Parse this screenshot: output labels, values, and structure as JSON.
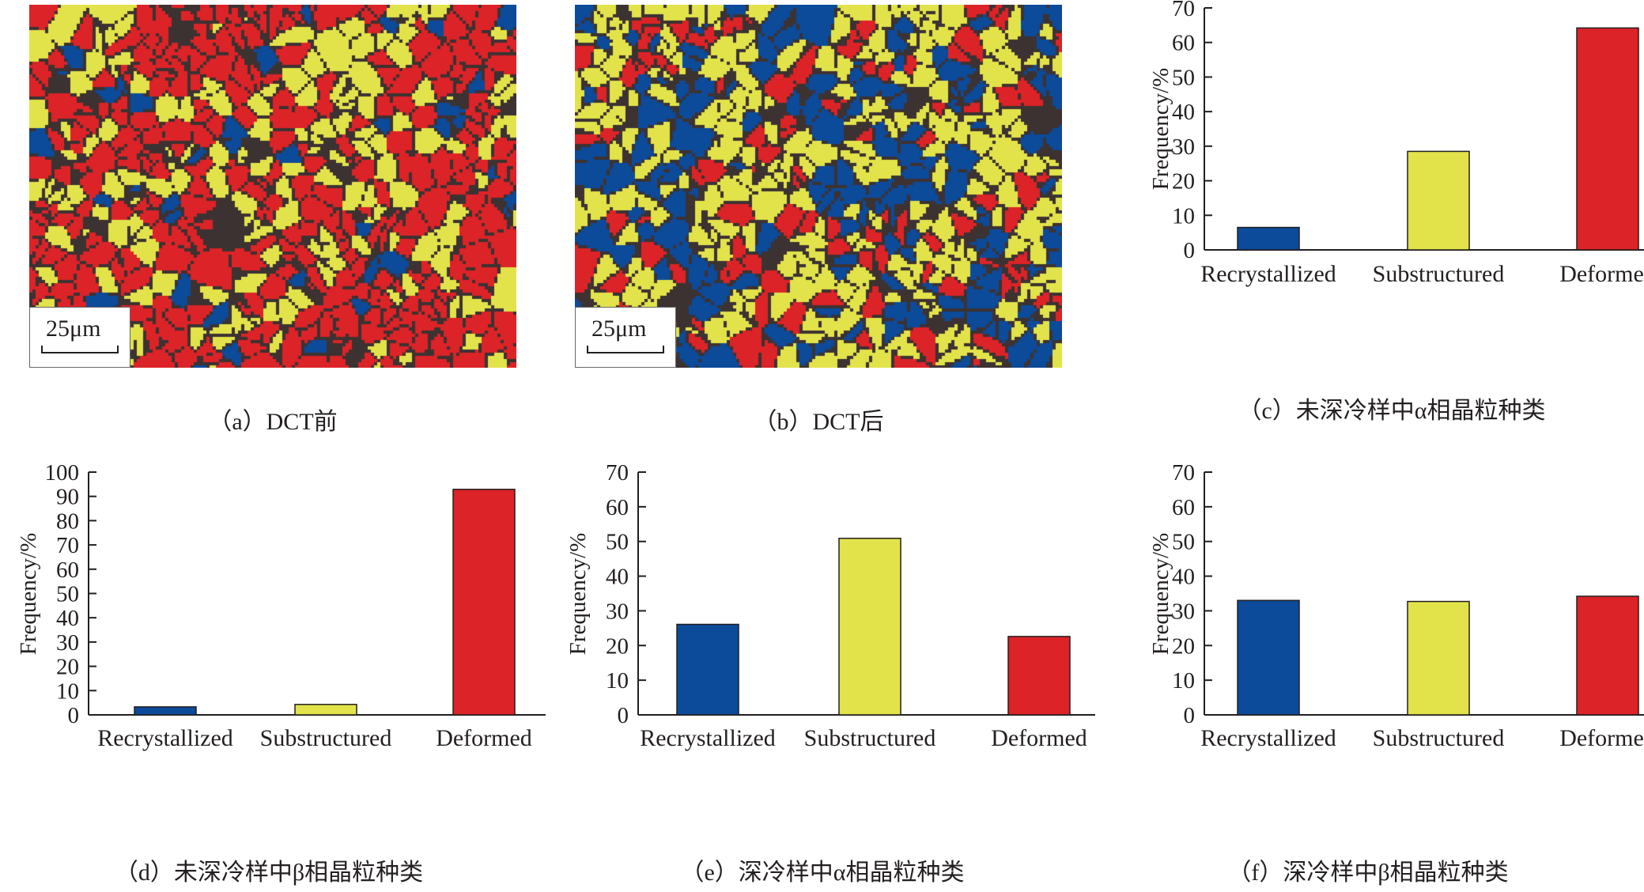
{
  "colors": {
    "recrystallized": "#0c4a9a",
    "substructured": "#e2e34a",
    "deformed": "#dc2327",
    "axis": "#231f20"
  },
  "micrographs": [
    {
      "id": "a",
      "caption": "（a）DCT前",
      "scale_bar": "25μm",
      "phase_mix": {
        "deformed": 0.62,
        "substructured": 0.3,
        "recrystallized": 0.08
      }
    },
    {
      "id": "b",
      "caption": "（b）DCT后",
      "scale_bar": "25μm",
      "phase_mix": {
        "deformed": 0.22,
        "substructured": 0.5,
        "recrystallized": 0.28
      }
    }
  ],
  "chart_data": [
    {
      "id": "c",
      "type": "bar",
      "caption": "（c）未深冷样中α相晶粒种类",
      "categories": [
        "Recrystallized",
        "Substructured",
        "Deformed"
      ],
      "values": [
        6.5,
        28.5,
        64.2
      ],
      "ylabel": "Frequency/%",
      "ylim": [
        0,
        70
      ],
      "yticks": [
        0,
        10,
        20,
        30,
        40,
        50,
        60,
        70
      ],
      "ytick_labels": [
        "0",
        "10",
        "20",
        "30",
        "40",
        "50",
        "60",
        "70"
      ],
      "grid": false,
      "legend": "none"
    },
    {
      "id": "d",
      "type": "bar",
      "caption": "（d）未深冷样中β相晶粒种类",
      "categories": [
        "Recrystallized",
        "Substructured",
        "Deformed"
      ],
      "values": [
        3.3,
        4.3,
        92.9
      ],
      "ylabel": "Frequency/%",
      "ylim": [
        0,
        100
      ],
      "yticks": [
        0,
        10,
        20,
        30,
        40,
        50,
        60,
        70,
        80,
        90,
        100
      ],
      "ytick_labels": [
        "0",
        "10",
        "20",
        "30",
        "40",
        "50",
        "60",
        "70",
        "80",
        "90",
        "100"
      ],
      "grid": false,
      "legend": "none"
    },
    {
      "id": "e",
      "type": "bar",
      "caption": "（e）深冷样中α相晶粒种类",
      "categories": [
        "Recrystallized",
        "Substructured",
        "Deformed"
      ],
      "values": [
        26.1,
        50.9,
        22.6
      ],
      "ylabel": "Frequency/%",
      "ylim": [
        0,
        70
      ],
      "yticks": [
        0,
        10,
        20,
        30,
        40,
        50,
        60,
        70
      ],
      "ytick_labels": [
        "0",
        "10",
        "20",
        "30",
        "40",
        "50",
        "60",
        "70"
      ],
      "grid": false,
      "legend": "none"
    },
    {
      "id": "f",
      "type": "bar",
      "caption": "（f）深冷样中β相晶粒种类",
      "categories": [
        "Recrystallized",
        "Substructured",
        "Deformed"
      ],
      "values": [
        33.0,
        32.7,
        34.2
      ],
      "ylabel": "Frequency/%",
      "ylim": [
        0,
        70
      ],
      "yticks": [
        0,
        10,
        20,
        30,
        40,
        50,
        60,
        70
      ],
      "ytick_labels": [
        "0",
        "10",
        "20",
        "30",
        "40",
        "50",
        "60",
        "70"
      ],
      "grid": false,
      "legend": "none"
    }
  ]
}
